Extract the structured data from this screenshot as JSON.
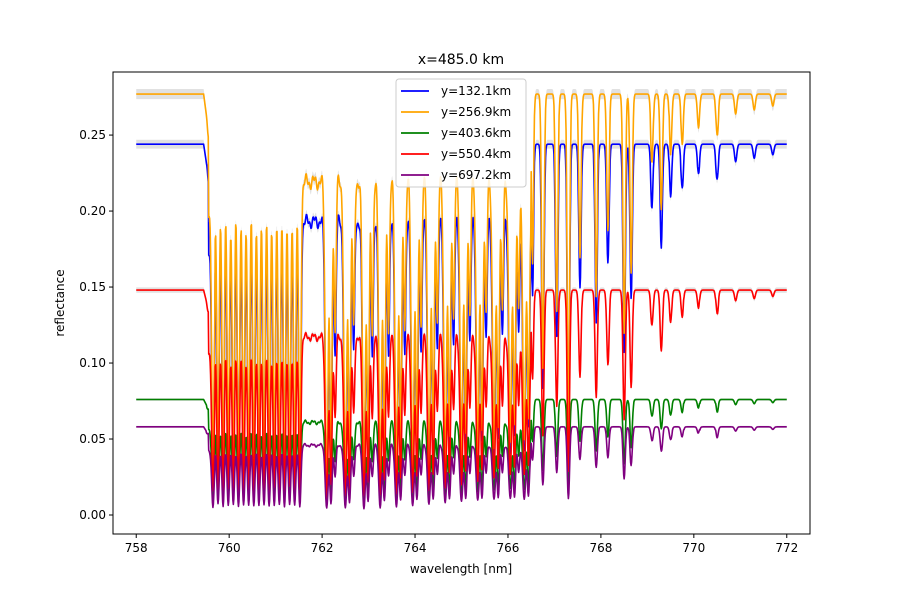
{
  "chart_data": {
    "type": "line",
    "title": "x=485.0 km",
    "xlabel": "wavelength [nm]",
    "ylabel": "reflectance",
    "xlim": [
      757.5,
      772.5
    ],
    "ylim": [
      -0.0125,
      0.2915
    ],
    "xticks": [
      758,
      760,
      762,
      764,
      766,
      768,
      770,
      772
    ],
    "yticks": [
      0.0,
      0.05,
      0.1,
      0.15,
      0.2,
      0.25
    ],
    "ytick_format": 2,
    "grid": false,
    "legend_position": "top-center",
    "x_range": [
      758.0,
      772.0
    ],
    "band_color": "#c8c8c8",
    "series": [
      {
        "name": "y=132.1km",
        "color": "#0000ff",
        "continuum": 0.244,
        "depth": 0.95,
        "phase": 0.0
      },
      {
        "name": "y=256.9km",
        "color": "#ffa500",
        "continuum": 0.277,
        "depth": 0.95,
        "phase": 0.37
      },
      {
        "name": "y=403.6km",
        "color": "#008000",
        "continuum": 0.076,
        "depth": 0.9,
        "phase": 1.1
      },
      {
        "name": "y=550.4km",
        "color": "#ff0000",
        "continuum": 0.148,
        "depth": 0.95,
        "phase": 0.7
      },
      {
        "name": "y=697.2km",
        "color": "#800080",
        "continuum": 0.058,
        "depth": 0.95,
        "phase": 1.6
      }
    ]
  }
}
